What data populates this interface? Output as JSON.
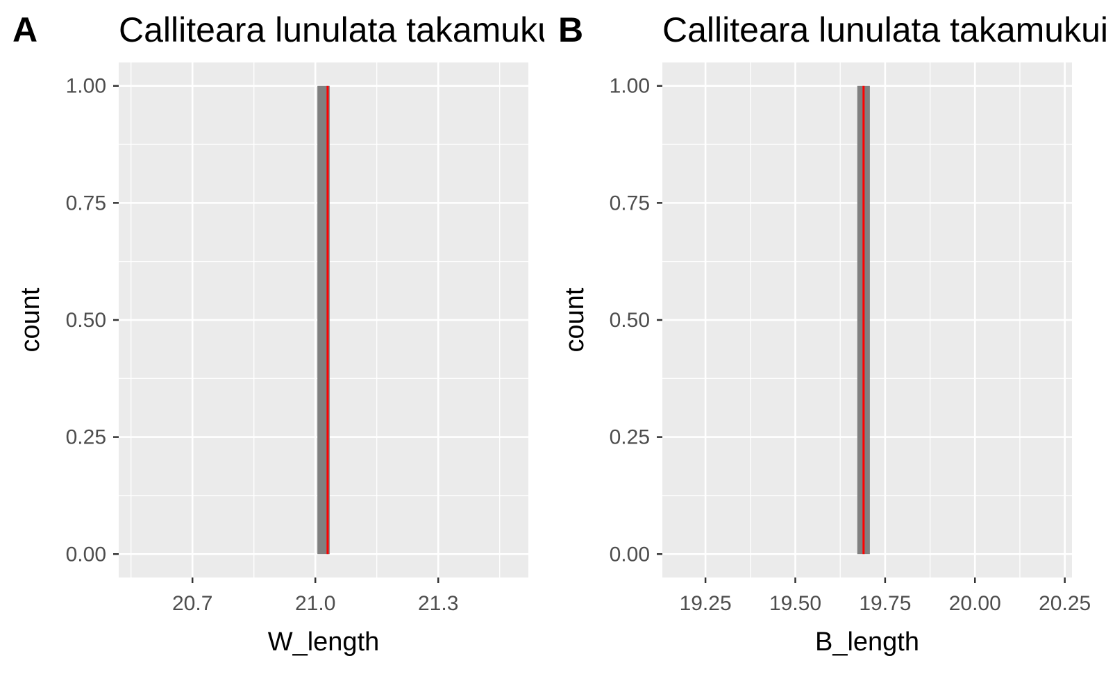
{
  "chart_data": [
    {
      "type": "bar",
      "panel_label": "A",
      "title": "Calliteara lunulata takamukui",
      "xlabel": "W_length",
      "ylabel": "count",
      "xlim": [
        20.52,
        21.52
      ],
      "ylim": [
        -0.05,
        1.05
      ],
      "x_ticks": [
        20.7,
        21.0,
        21.3
      ],
      "x_tick_labels": [
        "20.7",
        "21.0",
        "21.3"
      ],
      "x_minor": [
        20.55,
        20.85,
        21.15,
        21.45
      ],
      "y_ticks": [
        0.0,
        0.25,
        0.5,
        0.75,
        1.0
      ],
      "y_tick_labels": [
        "0.00",
        "0.25",
        "0.50",
        "0.75",
        "1.00"
      ],
      "y_minor": [
        0.125,
        0.375,
        0.625,
        0.875
      ],
      "bars": [
        {
          "x": 21.02,
          "width": 0.03,
          "count": 1
        }
      ],
      "mean_line": 21.03,
      "colors": {
        "panel": "#ebebeb",
        "grid": "#ffffff",
        "bar": "#808080",
        "mean_line": "#ff0000"
      }
    },
    {
      "type": "bar",
      "panel_label": "B",
      "title": "Calliteara lunulata takamukui",
      "xlabel": "B_length",
      "ylabel": "count",
      "xlim": [
        19.13,
        20.27
      ],
      "ylim": [
        -0.05,
        1.05
      ],
      "x_ticks": [
        19.25,
        19.5,
        19.75,
        20.0,
        20.25
      ],
      "x_tick_labels": [
        "19.25",
        "19.50",
        "19.75",
        "20.00",
        "20.25"
      ],
      "x_minor": [
        19.375,
        19.625,
        19.875,
        20.125
      ],
      "y_ticks": [
        0.0,
        0.25,
        0.5,
        0.75,
        1.0
      ],
      "y_tick_labels": [
        "0.00",
        "0.25",
        "0.50",
        "0.75",
        "1.00"
      ],
      "y_minor": [
        0.125,
        0.375,
        0.625,
        0.875
      ],
      "bars": [
        {
          "x": 19.69,
          "width": 0.035,
          "count": 1
        }
      ],
      "mean_line": 19.69,
      "colors": {
        "panel": "#ebebeb",
        "grid": "#ffffff",
        "bar": "#808080",
        "mean_line": "#ff0000"
      }
    }
  ]
}
